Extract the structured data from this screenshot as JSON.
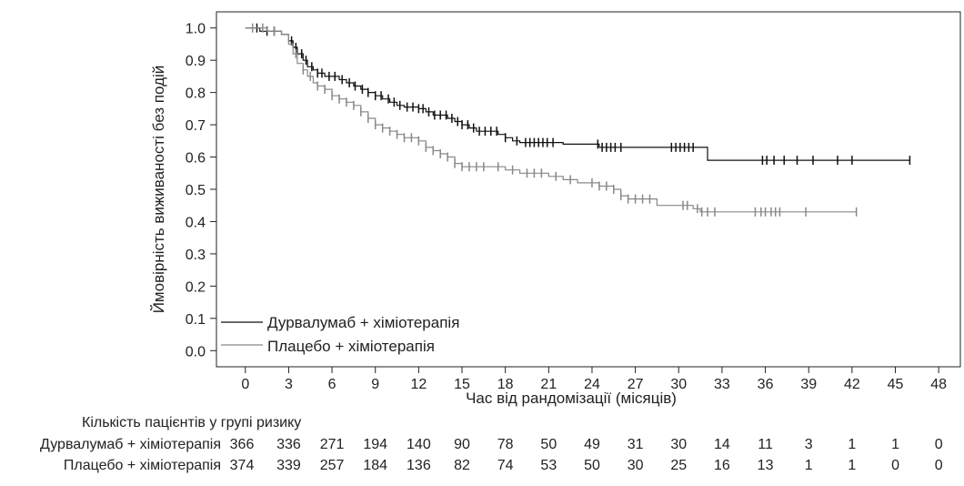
{
  "chart_data": {
    "type": "line",
    "title": "",
    "xlabel": "Час від рандомізації (місяців)",
    "ylabel": "Ймовірність виживаності без подій",
    "xlim": [
      -2,
      49.5
    ],
    "ylim": [
      -0.05,
      1.05
    ],
    "xticks": [
      0,
      3,
      6,
      9,
      12,
      15,
      18,
      21,
      24,
      27,
      30,
      33,
      36,
      39,
      42,
      45,
      48
    ],
    "xtick_labels": [
      "0",
      "3",
      "6",
      "9",
      "12",
      "15",
      "18",
      "21",
      "24",
      "27",
      "30",
      "33",
      "36",
      "39",
      "42",
      "45",
      "48"
    ],
    "yticks": [
      0.0,
      0.1,
      0.2,
      0.3,
      0.4,
      0.5,
      0.6,
      0.7,
      0.8,
      0.9,
      1.0
    ],
    "ytick_labels": [
      "0.0",
      "0.1",
      "0.2",
      "0.3",
      "0.4",
      "0.5",
      "0.6",
      "0.7",
      "0.8",
      "0.9",
      "1.0"
    ],
    "legend_position": "bottom-left",
    "series": [
      {
        "name": "Дурвалумаб + хіміотерапія",
        "color": "#111111",
        "steps": [
          [
            0,
            1.0
          ],
          [
            1.0,
            0.99
          ],
          [
            2.5,
            0.98
          ],
          [
            3.0,
            0.96
          ],
          [
            3.3,
            0.94
          ],
          [
            3.6,
            0.92
          ],
          [
            4.0,
            0.9
          ],
          [
            4.3,
            0.88
          ],
          [
            4.7,
            0.87
          ],
          [
            5.0,
            0.86
          ],
          [
            5.5,
            0.85
          ],
          [
            6.5,
            0.84
          ],
          [
            7.0,
            0.83
          ],
          [
            7.5,
            0.82
          ],
          [
            8.0,
            0.81
          ],
          [
            8.5,
            0.8
          ],
          [
            9.0,
            0.79
          ],
          [
            9.5,
            0.78
          ],
          [
            10.0,
            0.77
          ],
          [
            10.5,
            0.76
          ],
          [
            11.0,
            0.755
          ],
          [
            12.0,
            0.75
          ],
          [
            12.5,
            0.74
          ],
          [
            13.0,
            0.73
          ],
          [
            14.0,
            0.72
          ],
          [
            14.5,
            0.71
          ],
          [
            15.0,
            0.7
          ],
          [
            15.5,
            0.69
          ],
          [
            16.0,
            0.68
          ],
          [
            17.5,
            0.67
          ],
          [
            18.0,
            0.66
          ],
          [
            18.5,
            0.65
          ],
          [
            19.0,
            0.645
          ],
          [
            22.0,
            0.64
          ],
          [
            24.5,
            0.63
          ],
          [
            32.0,
            0.59
          ],
          [
            46.0,
            0.59
          ]
        ],
        "censors": [
          0.8,
          1.5,
          2.0,
          3.2,
          3.5,
          3.9,
          4.2,
          4.6,
          5.0,
          5.3,
          5.8,
          6.2,
          6.7,
          7.2,
          7.6,
          8.1,
          8.5,
          9.0,
          9.4,
          9.9,
          10.3,
          10.7,
          11.2,
          11.6,
          12.0,
          12.3,
          12.7,
          13.1,
          13.5,
          13.9,
          14.3,
          14.7,
          15.0,
          15.4,
          15.8,
          16.2,
          16.6,
          17.0,
          17.4,
          18.0,
          18.8,
          19.4,
          19.7,
          20.0,
          20.3,
          20.6,
          20.9,
          21.3,
          24.4,
          24.7,
          25.0,
          25.3,
          25.6,
          26.0,
          29.5,
          29.8,
          30.1,
          30.4,
          30.7,
          31.0,
          35.8,
          36.1,
          36.6,
          37.3,
          38.2,
          39.3,
          41.0,
          42.0,
          46.0
        ]
      },
      {
        "name": "Плацебо + хіміотерапія",
        "color": "#888888",
        "steps": [
          [
            0,
            1.0
          ],
          [
            1.5,
            0.99
          ],
          [
            2.5,
            0.98
          ],
          [
            3.0,
            0.95
          ],
          [
            3.3,
            0.92
          ],
          [
            3.6,
            0.89
          ],
          [
            4.0,
            0.87
          ],
          [
            4.3,
            0.85
          ],
          [
            4.7,
            0.83
          ],
          [
            5.0,
            0.82
          ],
          [
            5.5,
            0.81
          ],
          [
            6.0,
            0.79
          ],
          [
            6.5,
            0.78
          ],
          [
            7.0,
            0.77
          ],
          [
            7.5,
            0.76
          ],
          [
            8.0,
            0.74
          ],
          [
            8.5,
            0.72
          ],
          [
            9.0,
            0.7
          ],
          [
            9.5,
            0.69
          ],
          [
            10.0,
            0.68
          ],
          [
            10.5,
            0.67
          ],
          [
            11.0,
            0.66
          ],
          [
            12.0,
            0.65
          ],
          [
            12.5,
            0.63
          ],
          [
            13.0,
            0.62
          ],
          [
            13.5,
            0.61
          ],
          [
            14.0,
            0.6
          ],
          [
            14.5,
            0.58
          ],
          [
            15.0,
            0.57
          ],
          [
            18.0,
            0.56
          ],
          [
            19.0,
            0.55
          ],
          [
            21.0,
            0.54
          ],
          [
            22.0,
            0.53
          ],
          [
            23.0,
            0.52
          ],
          [
            24.5,
            0.51
          ],
          [
            25.5,
            0.5
          ],
          [
            26.0,
            0.48
          ],
          [
            26.5,
            0.47
          ],
          [
            28.5,
            0.45
          ],
          [
            31.0,
            0.44
          ],
          [
            31.5,
            0.43
          ],
          [
            42.3,
            0.43
          ]
        ],
        "censors": [
          0.5,
          1.2,
          2.0,
          3.5,
          4.0,
          4.5,
          5.0,
          5.5,
          6.0,
          6.5,
          7.0,
          7.5,
          8.0,
          8.5,
          9.0,
          9.5,
          10.0,
          10.5,
          11.0,
          11.5,
          12.0,
          12.5,
          13.0,
          13.5,
          14.0,
          14.5,
          15.0,
          15.5,
          16.0,
          16.5,
          17.5,
          18.5,
          19.5,
          20.0,
          20.5,
          21.5,
          22.5,
          24.0,
          24.5,
          25.0,
          25.5,
          26.0,
          26.5,
          27.0,
          27.5,
          28.0,
          30.3,
          30.6,
          31.3,
          31.6,
          32.0,
          32.5,
          35.3,
          35.7,
          36.0,
          36.4,
          36.7,
          37.0,
          38.8,
          42.3
        ]
      }
    ],
    "risk_table": {
      "title": "Кількість пацієнтів у групі ризику",
      "times": [
        0,
        3,
        6,
        9,
        12,
        15,
        18,
        21,
        24,
        27,
        30,
        33,
        36,
        39,
        42,
        45,
        48
      ],
      "rows": [
        {
          "label": "Дурвалумаб + хіміотерапія",
          "values": [
            "366",
            "336",
            "271",
            "194",
            "140",
            "90",
            "78",
            "50",
            "49",
            "31",
            "30",
            "14",
            "11",
            "3",
            "1",
            "1",
            "0"
          ]
        },
        {
          "label": "Плацебо + хіміотерапія",
          "values": [
            "374",
            "339",
            "257",
            "184",
            "136",
            "82",
            "74",
            "53",
            "50",
            "30",
            "25",
            "16",
            "13",
            "1",
            "1",
            "0",
            "0"
          ]
        }
      ]
    }
  }
}
